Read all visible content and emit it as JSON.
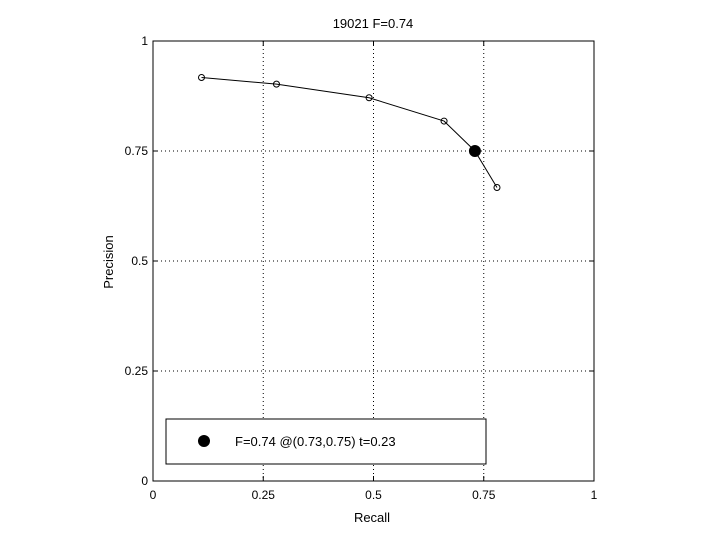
{
  "chart_data": {
    "type": "line",
    "title": "19021 F=0.74",
    "xlabel": "Recall",
    "ylabel": "Precision",
    "xlim": [
      0,
      1
    ],
    "ylim": [
      0,
      1
    ],
    "grid": true,
    "grid_style": "dotted",
    "xticks": [
      0,
      0.25,
      0.5,
      0.75,
      1
    ],
    "xtick_labels": [
      "0",
      "0.25",
      "0.5",
      "0.75",
      "1"
    ],
    "yticks": [
      0,
      0.25,
      0.5,
      0.75,
      1
    ],
    "ytick_labels": [
      "0",
      "0.25",
      "0.5",
      "0.75",
      "1"
    ],
    "series": [
      {
        "marker": "open-circle",
        "color": "#000000",
        "points": [
          {
            "x": 0.11,
            "y": 0.917
          },
          {
            "x": 0.28,
            "y": 0.902
          },
          {
            "x": 0.49,
            "y": 0.871
          },
          {
            "x": 0.66,
            "y": 0.818
          },
          {
            "x": 0.73,
            "y": 0.75
          },
          {
            "x": 0.78,
            "y": 0.667
          }
        ]
      }
    ],
    "best_point": {
      "x": 0.73,
      "y": 0.75,
      "marker": "filled-circle",
      "color": "#000000"
    },
    "legend": {
      "position": "bottom-left",
      "entries": [
        {
          "label": "F=0.74 @(0.73,0.75) t=0.23",
          "marker": "filled-circle"
        }
      ]
    }
  }
}
